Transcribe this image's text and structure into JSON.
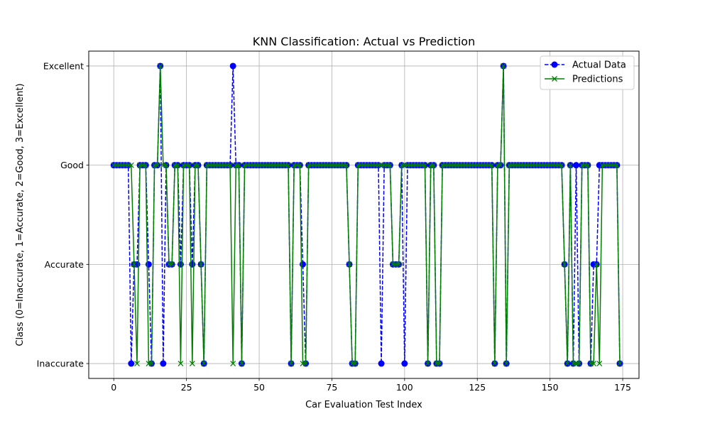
{
  "chart_data": {
    "type": "line",
    "title": "KNN Classification: Actual vs Prediction",
    "xlabel": "Car Evaluation Test Index",
    "ylabel": "Class (0=Inaccurate, 1=Accurate, 2=Good, 3=Excellent)",
    "xlim": [
      -8.6,
      180.6
    ],
    "ylim": [
      -0.15,
      3.15
    ],
    "x_ticks": [
      0,
      25,
      50,
      75,
      100,
      125,
      150,
      175
    ],
    "y_ticks": [
      0,
      1,
      2,
      3
    ],
    "y_tick_labels": [
      "Inaccurate",
      "Accurate",
      "Good",
      "Excellent"
    ],
    "grid": true,
    "legend_position": "upper right",
    "series": [
      {
        "name": "Actual Data",
        "color": "#0000ff",
        "linestyle": "dashed",
        "marker": "circle",
        "values": [
          2,
          2,
          2,
          2,
          2,
          2,
          0,
          1,
          1,
          2,
          2,
          2,
          1,
          0,
          2,
          2,
          3,
          0,
          2,
          1,
          1,
          2,
          2,
          1,
          2,
          2,
          2,
          1,
          2,
          2,
          1,
          0,
          2,
          2,
          2,
          2,
          2,
          2,
          2,
          2,
          2,
          3,
          2,
          2,
          0,
          2,
          2,
          2,
          2,
          2,
          2,
          2,
          2,
          2,
          2,
          2,
          2,
          2,
          2,
          2,
          2,
          0,
          2,
          2,
          2,
          1,
          0,
          2,
          2,
          2,
          2,
          2,
          2,
          2,
          2,
          2,
          2,
          2,
          2,
          2,
          2,
          1,
          0,
          0,
          2,
          2,
          2,
          2,
          2,
          2,
          2,
          2,
          0,
          2,
          2,
          2,
          1,
          1,
          1,
          2,
          0,
          2,
          2,
          2,
          2,
          2,
          2,
          2,
          0,
          2,
          2,
          0,
          0,
          2,
          2,
          2,
          2,
          2,
          2,
          2,
          2,
          2,
          2,
          2,
          2,
          2,
          2,
          2,
          2,
          2,
          2,
          0,
          2,
          2,
          3,
          0,
          2,
          2,
          2,
          2,
          2,
          2,
          2,
          2,
          2,
          2,
          2,
          2,
          2,
          2,
          2,
          2,
          2,
          2,
          2,
          1,
          0,
          2,
          0,
          2,
          0,
          2,
          2,
          2,
          0,
          1,
          1,
          2,
          2,
          2,
          2,
          2,
          2,
          2,
          0
        ]
      },
      {
        "name": "Predictions",
        "color": "#008000",
        "linestyle": "solid",
        "marker": "x",
        "values": [
          2,
          2,
          2,
          2,
          2,
          2,
          2,
          1,
          0,
          2,
          2,
          2,
          0,
          0,
          2,
          2,
          3,
          2,
          2,
          1,
          1,
          2,
          2,
          0,
          2,
          2,
          2,
          0,
          2,
          2,
          1,
          0,
          2,
          2,
          2,
          2,
          2,
          2,
          2,
          2,
          2,
          0,
          2,
          2,
          0,
          2,
          2,
          2,
          2,
          2,
          2,
          2,
          2,
          2,
          2,
          2,
          2,
          2,
          2,
          2,
          2,
          0,
          2,
          2,
          2,
          0,
          0,
          2,
          2,
          2,
          2,
          2,
          2,
          2,
          2,
          2,
          2,
          2,
          2,
          2,
          2,
          1,
          0,
          0,
          2,
          2,
          2,
          2,
          2,
          2,
          2,
          2,
          2,
          2,
          2,
          2,
          1,
          1,
          1,
          2,
          2,
          2,
          2,
          2,
          2,
          2,
          2,
          2,
          0,
          2,
          2,
          0,
          0,
          2,
          2,
          2,
          2,
          2,
          2,
          2,
          2,
          2,
          2,
          2,
          2,
          2,
          2,
          2,
          2,
          2,
          2,
          0,
          2,
          2,
          3,
          0,
          2,
          2,
          2,
          2,
          2,
          2,
          2,
          2,
          2,
          2,
          2,
          2,
          2,
          2,
          2,
          2,
          2,
          2,
          2,
          1,
          0,
          2,
          0,
          0,
          0,
          2,
          2,
          2,
          0,
          0,
          1,
          0,
          2,
          2,
          2,
          2,
          2,
          2,
          0
        ]
      }
    ]
  }
}
